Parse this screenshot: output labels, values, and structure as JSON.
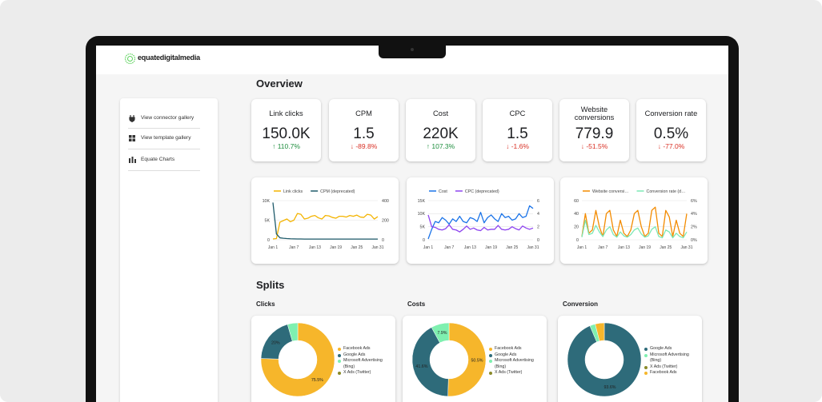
{
  "logo": "equatedigitalmedia",
  "sidebar": [
    "View connector gallery",
    "View template gallery",
    "Equate Charts"
  ],
  "overview": {
    "title": "Overview",
    "kpis": [
      {
        "label": "Link clicks",
        "value": "150.0K",
        "change": "↑ 110.7%"
      },
      {
        "label": "CPM",
        "value": "1.5",
        "change": "↓ -89.8%"
      },
      {
        "label": "Cost",
        "value": "220K",
        "change": "↑ 107.3%"
      },
      {
        "label": "CPC",
        "value": "1.5",
        "change": "↓ -1.6%"
      },
      {
        "label": "Website conversions",
        "value": "779.9",
        "change": "↓ -51.5%"
      },
      {
        "label": "Conversion rate",
        "value": "0.5%",
        "change": "↓ -77.0%"
      }
    ]
  },
  "splits": {
    "title": "Splits"
  },
  "chart_data": [
    {
      "type": "line",
      "categories": [
        "Jan 1",
        null,
        null,
        null,
        null,
        null,
        "Jan 7",
        null,
        null,
        null,
        null,
        null,
        "Jan 13",
        null,
        null,
        null,
        null,
        null,
        "Jan 19",
        null,
        null,
        null,
        null,
        null,
        "Jan 25",
        null,
        null,
        null,
        null,
        null,
        "Jan 31"
      ],
      "ylim": [
        0,
        10000
      ],
      "yticks": [
        0,
        {
          "value": 5000,
          "label": "5K"
        },
        {
          "value": 10000,
          "label": "10K"
        }
      ],
      "y2lim": [
        0,
        400
      ],
      "y2ticks": [
        0,
        200,
        400
      ],
      "grid": true,
      "series": [
        {
          "name": "Link clicks",
          "color": "#f4b400",
          "values": [
            200,
            300,
            4500,
            4900,
            5300,
            4600,
            5000,
            6700,
            6500,
            5300,
            5500,
            6000,
            6200,
            5600,
            5300,
            6200,
            6100,
            5700,
            5500,
            6000,
            6000,
            5800,
            6200,
            6000,
            6300,
            5800,
            5700,
            6500,
            6300,
            5300,
            5900
          ]
        },
        {
          "name": "CPM (deprecated)",
          "color": "#1f5b6b",
          "axis": "y2",
          "values": [
            380,
            60,
            20,
            15,
            12,
            10,
            9,
            8,
            8,
            7,
            7,
            7,
            7,
            7,
            7,
            7,
            7,
            7,
            7,
            7,
            7,
            7,
            7,
            7,
            7,
            7,
            7,
            7,
            7,
            7,
            7
          ]
        }
      ]
    },
    {
      "type": "line",
      "categories": [
        "Jan 1",
        null,
        null,
        null,
        null,
        null,
        "Jan 7",
        null,
        null,
        null,
        null,
        null,
        "Jan 13",
        null,
        null,
        null,
        null,
        null,
        "Jan 19",
        null,
        null,
        null,
        null,
        null,
        "Jan 25",
        null,
        null,
        null,
        null,
        null,
        "Jan 31"
      ],
      "ylim": [
        0,
        15000
      ],
      "yticks": [
        0,
        {
          "value": 5000,
          "label": "5K"
        },
        {
          "value": 10000,
          "label": "10K"
        },
        {
          "value": 15000,
          "label": "15K"
        }
      ],
      "y2lim": [
        0,
        6
      ],
      "y2ticks": [
        0,
        2,
        4,
        6
      ],
      "grid": true,
      "series": [
        {
          "name": "Cost",
          "color": "#1a73e8",
          "values": [
            300,
            4000,
            7000,
            6500,
            8500,
            7500,
            6000,
            8000,
            7000,
            9000,
            7000,
            6500,
            8500,
            8000,
            7000,
            10500,
            6500,
            8500,
            9500,
            8000,
            7000,
            10000,
            8500,
            9000,
            7500,
            8000,
            10000,
            8500,
            9000,
            13000,
            12000
          ]
        },
        {
          "name": "CPC (deprecated)",
          "color": "#8e44ef",
          "axis": "y2",
          "values": [
            3.8,
            2.0,
            1.9,
            1.6,
            1.5,
            1.7,
            2.3,
            1.6,
            1.5,
            1.2,
            1.6,
            2.1,
            1.6,
            1.8,
            1.5,
            1.4,
            1.9,
            1.5,
            1.6,
            1.6,
            2.2,
            1.6,
            1.5,
            1.6,
            2.0,
            1.7,
            1.5,
            2.1,
            1.8,
            1.6,
            1.8
          ]
        }
      ]
    },
    {
      "type": "line",
      "categories": [
        "Jan 1",
        null,
        null,
        null,
        null,
        null,
        "Jan 7",
        null,
        null,
        null,
        null,
        null,
        "Jan 13",
        null,
        null,
        null,
        null,
        null,
        "Jan 19",
        null,
        null,
        null,
        null,
        null,
        "Jan 25",
        null,
        null,
        null,
        null,
        null,
        "Jan 31"
      ],
      "ylim": [
        0,
        60
      ],
      "yticks": [
        0,
        20,
        40,
        60
      ],
      "y2lim": [
        0,
        6
      ],
      "y2ticks": [
        {
          "value": 0,
          "label": "0%"
        },
        {
          "value": 2,
          "label": "2%"
        },
        {
          "value": 4,
          "label": "4%"
        },
        {
          "value": 6,
          "label": "6%"
        }
      ],
      "grid": true,
      "series": [
        {
          "name": "Website conversi…",
          "color": "#f38b00",
          "values": [
            5,
            40,
            10,
            15,
            45,
            20,
            5,
            40,
            45,
            15,
            5,
            30,
            10,
            5,
            15,
            40,
            45,
            20,
            5,
            10,
            45,
            50,
            10,
            5,
            45,
            35,
            5,
            30,
            10,
            5,
            40
          ]
        },
        {
          "name": "Conversion rate (d…",
          "color": "#7de8b6",
          "axis": "y2",
          "values": [
            0.4,
            3.0,
            0.8,
            1.0,
            2.2,
            1.2,
            0.5,
            1.5,
            2.0,
            0.8,
            0.4,
            1.2,
            0.6,
            0.4,
            0.8,
            1.5,
            1.8,
            0.9,
            0.4,
            0.6,
            1.6,
            2.0,
            0.5,
            0.3,
            1.5,
            1.2,
            0.3,
            1.0,
            0.5,
            0.3,
            1.2
          ]
        }
      ]
    },
    {
      "type": "pie",
      "title": "Clicks",
      "categories": [
        "Facebook Ads",
        "Google Ads",
        "Microsoft Advertising (Bing)",
        "X Ads (Twitter)"
      ],
      "values": [
        75.5,
        20,
        4.5,
        0
      ],
      "value_labels": [
        "75.5%",
        "20%",
        null,
        null
      ],
      "colors": [
        "#f6b62b",
        "#2e6b7a",
        "#7ff0b0",
        "#8a8a2a"
      ]
    },
    {
      "type": "pie",
      "title": "Costs",
      "categories": [
        "Facebook Ads",
        "Google Ads",
        "Microsoft Advertising (Bing)",
        "X Ads (Twitter)"
      ],
      "values": [
        50.5,
        41.6,
        7.9,
        0
      ],
      "value_labels": [
        "50.5%",
        "41.6%",
        "7.9%",
        null
      ],
      "colors": [
        "#f6b62b",
        "#2e6b7a",
        "#7ff0b0",
        "#8a8a2a"
      ]
    },
    {
      "type": "pie",
      "title": "Conversion",
      "categories": [
        "Google Ads",
        "Microsoft Advertising (Bing)",
        "X Ads (Twitter)",
        "Facebook Ads"
      ],
      "values": [
        93.6,
        2.4,
        0,
        4
      ],
      "value_labels": [
        "93.6%",
        null,
        null,
        null
      ],
      "colors": [
        "#2e6b7a",
        "#7ff0b0",
        "#8a8a2a",
        "#f6b62b"
      ]
    }
  ]
}
